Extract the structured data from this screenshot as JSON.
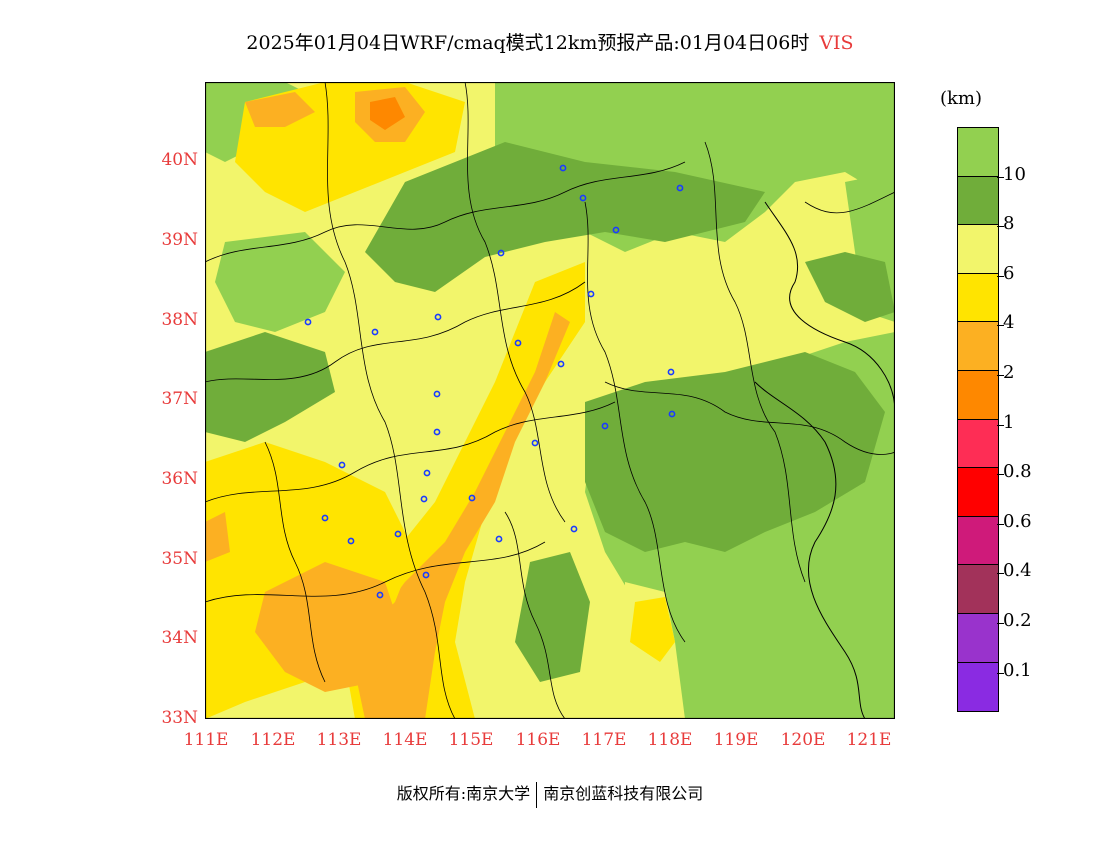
{
  "title": {
    "main": "2025年01月04日WRF/cmaq模式12km预报产品:01月04日06时",
    "variable": "VIS"
  },
  "map": {
    "lat_labels": [
      "40N",
      "39N",
      "38N",
      "37N",
      "36N",
      "35N",
      "34N",
      "33N"
    ],
    "lon_labels": [
      "111E",
      "112E",
      "113E",
      "114E",
      "115E",
      "116E",
      "117E",
      "118E",
      "119E",
      "120E",
      "121E"
    ],
    "lon_range": [
      111,
      121.4
    ],
    "lat_range": [
      33,
      41
    ]
  },
  "colorbar": {
    "unit": "(km)",
    "colors": [
      "#92d050",
      "#70ad3a",
      "#f2f56b",
      "#ffe400",
      "#fcb022",
      "#fe8800",
      "#fe2d55",
      "#ff0000",
      "#cf1a7a",
      "#a2325a",
      "#9933cc",
      "#8a2be2"
    ],
    "labels": [
      "10",
      "8",
      "6",
      "4",
      "2",
      "1",
      "0.8",
      "0.6",
      "0.4",
      "0.2",
      "0.1"
    ]
  },
  "footer": {
    "left": "版权所有:南京大学",
    "right": "南京创蓝科技有限公司"
  }
}
